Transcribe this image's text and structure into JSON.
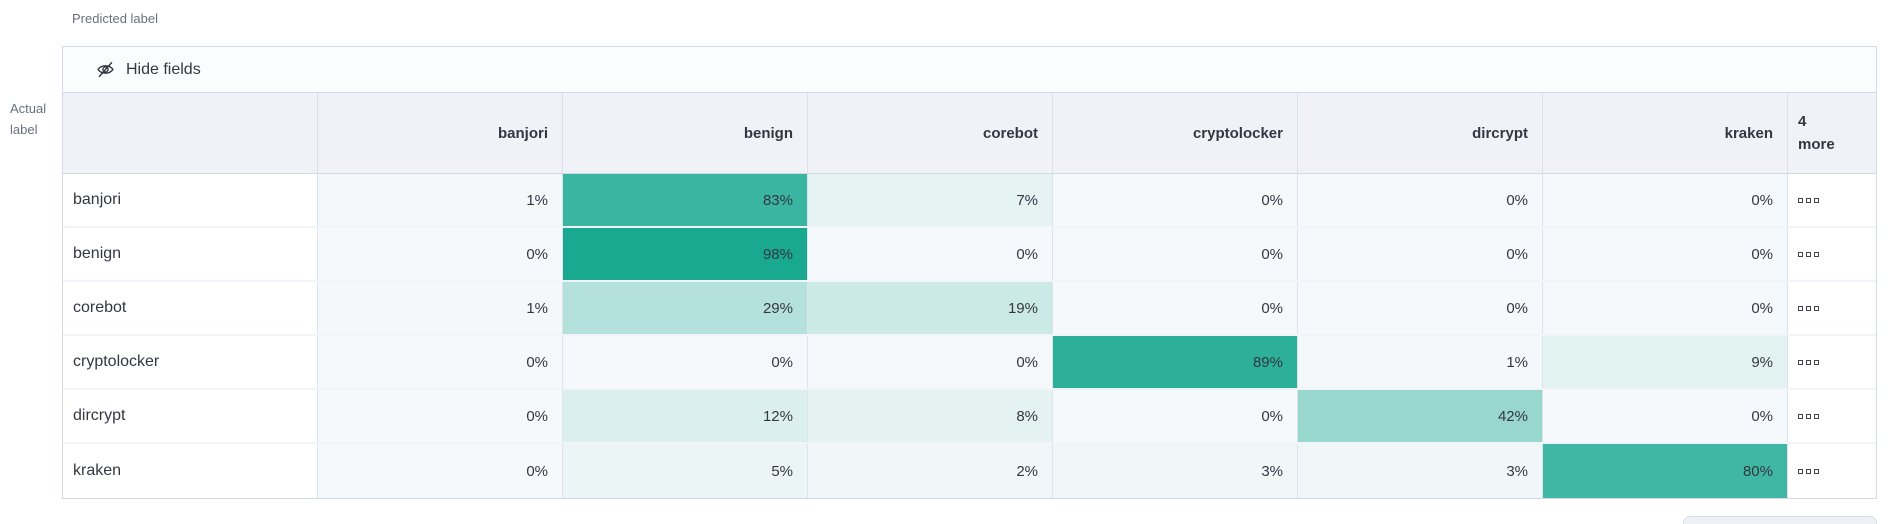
{
  "axis": {
    "predicted": "Predicted label",
    "actual": "Actual label"
  },
  "toolbar": {
    "hide_fields": "Hide fields",
    "icon": "eye-closed"
  },
  "grid": {
    "columns": [
      "banjori",
      "benign",
      "corebot",
      "cryptolocker",
      "dircrypt",
      "kraken"
    ],
    "more_columns_label": "4 more",
    "value_suffix": "%",
    "row_more_icon": "boxes-horizontal",
    "rows": [
      {
        "label": "banjori",
        "values": [
          1,
          83,
          7,
          0,
          0,
          0
        ]
      },
      {
        "label": "benign",
        "values": [
          0,
          98,
          0,
          0,
          0,
          0
        ]
      },
      {
        "label": "corebot",
        "values": [
          1,
          29,
          19,
          0,
          0,
          0
        ]
      },
      {
        "label": "cryptolocker",
        "values": [
          0,
          0,
          0,
          89,
          1,
          9
        ]
      },
      {
        "label": "dircrypt",
        "values": [
          0,
          12,
          8,
          0,
          42,
          0
        ]
      },
      {
        "label": "kraken",
        "values": [
          0,
          5,
          2,
          3,
          3,
          80
        ]
      }
    ]
  },
  "colors": {
    "heat_zero": "#f6f9fb",
    "heat_full": "#13a78e",
    "border": "#d3dae6",
    "header_bg": "#f0f2f7",
    "toolbar_bg": "#fbfcfd",
    "text": "#343741",
    "subdued_text": "#69707d"
  },
  "chart_data": {
    "type": "heatmap",
    "xlabel": "Predicted label",
    "ylabel": "Actual label",
    "x_categories": [
      "banjori",
      "benign",
      "corebot",
      "cryptolocker",
      "dircrypt",
      "kraken"
    ],
    "x_hidden_more": "4 more",
    "y_categories": [
      "banjori",
      "benign",
      "corebot",
      "cryptolocker",
      "dircrypt",
      "kraken"
    ],
    "values_percent": [
      [
        1,
        83,
        7,
        0,
        0,
        0
      ],
      [
        0,
        98,
        0,
        0,
        0,
        0
      ],
      [
        1,
        29,
        19,
        0,
        0,
        0
      ],
      [
        0,
        0,
        0,
        89,
        1,
        9
      ],
      [
        0,
        12,
        8,
        0,
        42,
        0
      ],
      [
        0,
        5,
        2,
        3,
        3,
        80
      ]
    ],
    "value_range": [
      0,
      100
    ],
    "color_encoding": "0% -> #f6f9fb, 100% -> #13a78e (linear teal scale)"
  }
}
